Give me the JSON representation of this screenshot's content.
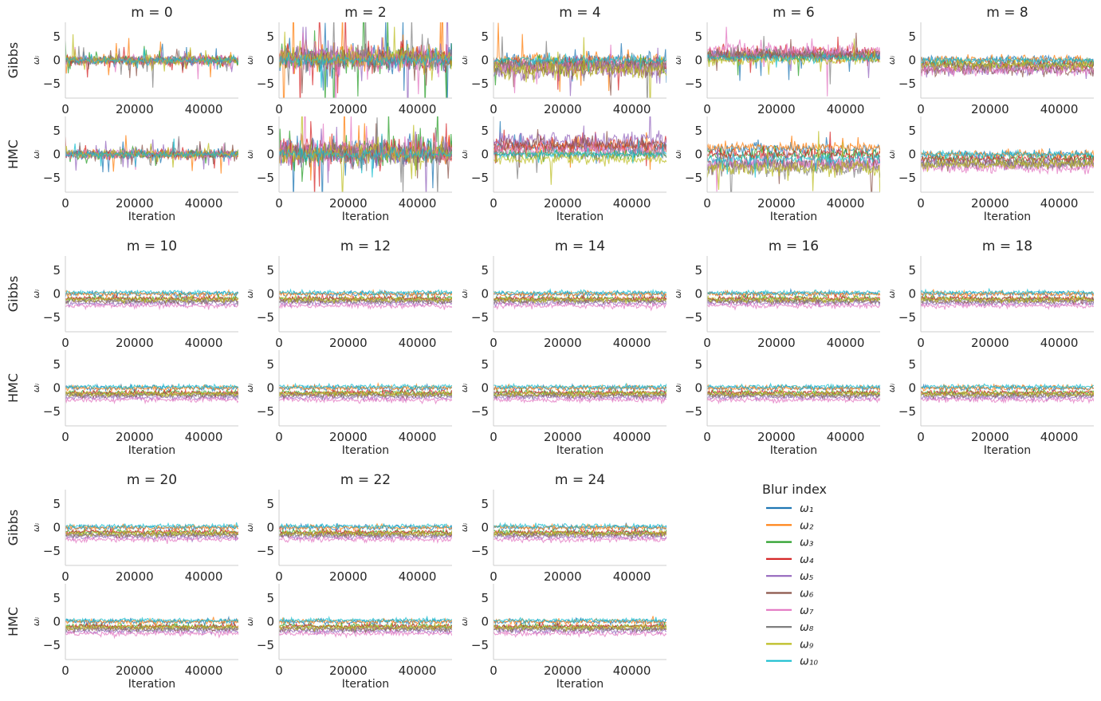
{
  "chart_data": {
    "type": "line",
    "figure_title": "",
    "xlim": [
      0,
      50000
    ],
    "ylim": [
      -8,
      8
    ],
    "xticks": [
      "0",
      "20000",
      "40000"
    ],
    "yticks": [
      "5",
      "0",
      "−5"
    ],
    "ylabel": "ωᵢ",
    "xlabel": "Iteration",
    "samplers": [
      "Gibbs",
      "HMC"
    ],
    "legend": {
      "title": "Blur index",
      "placement": "bottom-right",
      "entries": [
        {
          "label": "ω₁",
          "color": "#1f77b4"
        },
        {
          "label": "ω₂",
          "color": "#ff7f0e"
        },
        {
          "label": "ω₃",
          "color": "#2ca02c"
        },
        {
          "label": "ω₄",
          "color": "#d62728"
        },
        {
          "label": "ω₅",
          "color": "#9467bd"
        },
        {
          "label": "ω₆",
          "color": "#8c564b"
        },
        {
          "label": "ω₇",
          "color": "#e377c2"
        },
        {
          "label": "ω₈",
          "color": "#7f7f7f"
        },
        {
          "label": "ω₉",
          "color": "#bcbd22"
        },
        {
          "label": "ω₁₀",
          "color": "#17becf"
        }
      ]
    },
    "panels": [
      {
        "title": "m = 0",
        "traces": {
          "Gibbs": {
            "means": [
              0,
              0,
              0,
              0,
              0,
              0,
              0,
              0,
              0,
              0
            ],
            "spread": [
              0.8,
              0.8,
              0.8,
              0.8,
              0.8,
              0.8,
              0.8,
              0.8,
              0.8,
              0.6
            ],
            "spikes": 3
          },
          "HMC": {
            "means": [
              0,
              0,
              0,
              0,
              0,
              0,
              0,
              0,
              0,
              0
            ],
            "spread": [
              0.8,
              0.8,
              0.8,
              0.8,
              0.8,
              0.8,
              0.8,
              0.8,
              0.8,
              0.6
            ],
            "spikes": 3
          }
        }
      },
      {
        "title": "m = 2",
        "traces": {
          "Gibbs": {
            "means": [
              0.5,
              0.5,
              0.3,
              0.5,
              0.5,
              0.2,
              0.5,
              0.2,
              0.3,
              0
            ],
            "spread": [
              2.5,
              2.5,
              2.5,
              2.5,
              2.5,
              2,
              2.5,
              2,
              2,
              0.9
            ],
            "spikes": 2
          },
          "HMC": {
            "means": [
              0.5,
              0.5,
              0.3,
              0.5,
              0.5,
              0.2,
              0.5,
              0.2,
              0.3,
              0
            ],
            "spread": [
              2.5,
              2.5,
              2.5,
              2.5,
              2.5,
              2,
              2.5,
              2,
              2,
              0.9
            ],
            "spikes": 2
          }
        }
      },
      {
        "title": "m = 4",
        "traces": {
          "Gibbs": {
            "means": [
              0,
              0,
              -1,
              -1,
              -2,
              -2,
              -1,
              -1,
              -2,
              0
            ],
            "spread": [
              1.5,
              1.5,
              1.5,
              1.5,
              2,
              2,
              1.5,
              1.5,
              2,
              0.8
            ],
            "spikes": 1
          },
          "HMC": {
            "means": [
              1.5,
              1.5,
              0,
              2,
              3,
              2,
              1,
              0,
              -1,
              0
            ],
            "spread": [
              1.2,
              1.2,
              1,
              1.5,
              1.5,
              1.5,
              1,
              1,
              1,
              0.6
            ],
            "spikes": 1
          }
        }
      },
      {
        "title": "m = 6",
        "traces": {
          "Gibbs": {
            "means": [
              1,
              1,
              1,
              1.5,
              1,
              1,
              2,
              1,
              0,
              0.5
            ],
            "spread": [
              1.2,
              1.2,
              1.2,
              1.5,
              1.2,
              1.2,
              1.5,
              1.2,
              1,
              0.7
            ],
            "spikes": 1
          },
          "HMC": {
            "means": [
              1,
              1.5,
              0,
              0,
              -2,
              -2,
              -2,
              -3,
              -3,
              -1
            ],
            "spread": [
              1,
              1,
              1,
              1,
              1.5,
              1.5,
              1.5,
              1.5,
              1.5,
              0.9
            ],
            "spikes": 1
          }
        }
      },
      {
        "title": "m = 8",
        "traces": {
          "Gibbs": {
            "means": [
              0,
              0,
              -1,
              -1,
              -2,
              -2,
              -2,
              -1,
              -1,
              0
            ],
            "spread": [
              0.9,
              0.9,
              0.9,
              0.9,
              1.2,
              1.2,
              1.2,
              1,
              1,
              0.6
            ],
            "spikes": 0
          },
          "HMC": {
            "means": [
              0,
              0,
              -1,
              -1,
              -2,
              -2,
              -3,
              -2,
              -2,
              0
            ],
            "spread": [
              0.8,
              0.8,
              0.8,
              0.8,
              1,
              1,
              1,
              1,
              1,
              0.6
            ],
            "spikes": 0
          }
        }
      },
      {
        "title": "m = 10",
        "traces": {
          "Gibbs": {
            "means": [
              0,
              0,
              -1,
              -1,
              -2,
              -1.5,
              -2.5,
              -1.5,
              -1.2,
              0.3
            ],
            "spread": [
              0.5,
              0.5,
              0.5,
              0.5,
              0.5,
              0.5,
              0.5,
              0.5,
              0.5,
              0.4
            ],
            "spikes": 0
          },
          "HMC": {
            "means": [
              0,
              0,
              -1,
              -1,
              -2,
              -1.5,
              -2.5,
              -1.5,
              -1.2,
              0.3
            ],
            "spread": [
              0.5,
              0.5,
              0.5,
              0.5,
              0.5,
              0.5,
              0.5,
              0.5,
              0.5,
              0.4
            ],
            "spikes": 0
          }
        }
      },
      {
        "title": "m = 12",
        "traces": {
          "Gibbs": {
            "means": [
              0,
              0,
              -1,
              -1,
              -2,
              -1.5,
              -2.5,
              -1.5,
              -1.2,
              0.3
            ],
            "spread": [
              0.5,
              0.5,
              0.5,
              0.5,
              0.5,
              0.5,
              0.5,
              0.5,
              0.5,
              0.4
            ],
            "spikes": 0
          },
          "HMC": {
            "means": [
              0,
              0,
              -1,
              -1,
              -2,
              -1.5,
              -2.5,
              -1.5,
              -1.2,
              0.3
            ],
            "spread": [
              0.5,
              0.5,
              0.5,
              0.5,
              0.5,
              0.5,
              0.5,
              0.5,
              0.5,
              0.4
            ],
            "spikes": 0
          }
        }
      },
      {
        "title": "m = 14",
        "traces": {
          "Gibbs": {
            "means": [
              0,
              0,
              -1,
              -1,
              -2,
              -1.5,
              -2.5,
              -1.5,
              -1.2,
              0.3
            ],
            "spread": [
              0.5,
              0.5,
              0.5,
              0.5,
              0.5,
              0.5,
              0.5,
              0.5,
              0.5,
              0.4
            ],
            "spikes": 0
          },
          "HMC": {
            "means": [
              0,
              0,
              -1,
              -1,
              -2,
              -1.5,
              -2.5,
              -1.5,
              -1.2,
              0.3
            ],
            "spread": [
              0.5,
              0.5,
              0.5,
              0.5,
              0.5,
              0.5,
              0.5,
              0.5,
              0.5,
              0.4
            ],
            "spikes": 0
          }
        }
      },
      {
        "title": "m = 16",
        "traces": {
          "Gibbs": {
            "means": [
              0,
              0,
              -1,
              -1,
              -2,
              -1.5,
              -2.5,
              -1.5,
              -1.2,
              0.3
            ],
            "spread": [
              0.5,
              0.5,
              0.5,
              0.5,
              0.5,
              0.5,
              0.5,
              0.5,
              0.5,
              0.4
            ],
            "spikes": 0
          },
          "HMC": {
            "means": [
              0,
              0,
              -1,
              -1,
              -2,
              -1.5,
              -2.5,
              -1.5,
              -1.2,
              0.3
            ],
            "spread": [
              0.5,
              0.5,
              0.5,
              0.5,
              0.5,
              0.5,
              0.5,
              0.5,
              0.5,
              0.4
            ],
            "spikes": 0
          }
        }
      },
      {
        "title": "m = 18",
        "traces": {
          "Gibbs": {
            "means": [
              0,
              0,
              -1,
              -1,
              -2,
              -1.5,
              -2.5,
              -1.5,
              -1.2,
              0.3
            ],
            "spread": [
              0.5,
              0.5,
              0.5,
              0.5,
              0.5,
              0.5,
              0.5,
              0.5,
              0.5,
              0.4
            ],
            "spikes": 0
          },
          "HMC": {
            "means": [
              0,
              0,
              -1,
              -1,
              -2,
              -1.5,
              -2.5,
              -1.5,
              -1.2,
              0.3
            ],
            "spread": [
              0.5,
              0.5,
              0.5,
              0.5,
              0.5,
              0.5,
              0.5,
              0.5,
              0.5,
              0.4
            ],
            "spikes": 0
          }
        }
      },
      {
        "title": "m = 20",
        "traces": {
          "Gibbs": {
            "means": [
              0,
              0,
              -1,
              -1,
              -2,
              -1.5,
              -2.5,
              -1.5,
              -1.2,
              0.3
            ],
            "spread": [
              0.5,
              0.5,
              0.5,
              0.5,
              0.5,
              0.5,
              0.5,
              0.5,
              0.5,
              0.4
            ],
            "spikes": 0
          },
          "HMC": {
            "means": [
              0,
              0,
              -1,
              -1,
              -2,
              -1.5,
              -2.5,
              -1.5,
              -1.2,
              0.3
            ],
            "spread": [
              0.5,
              0.5,
              0.5,
              0.5,
              0.5,
              0.5,
              0.5,
              0.5,
              0.5,
              0.4
            ],
            "spikes": 0
          }
        }
      },
      {
        "title": "m = 22",
        "traces": {
          "Gibbs": {
            "means": [
              0,
              0,
              -1,
              -1,
              -2,
              -1.5,
              -2.5,
              -1.5,
              -1.2,
              0.3
            ],
            "spread": [
              0.5,
              0.5,
              0.5,
              0.5,
              0.5,
              0.5,
              0.5,
              0.5,
              0.5,
              0.4
            ],
            "spikes": 0
          },
          "HMC": {
            "means": [
              0,
              0,
              -1,
              -1,
              -2,
              -1.5,
              -2.5,
              -1.5,
              -1.2,
              0.3
            ],
            "spread": [
              0.5,
              0.5,
              0.5,
              0.5,
              0.5,
              0.5,
              0.5,
              0.5,
              0.5,
              0.4
            ],
            "spikes": 0
          }
        }
      },
      {
        "title": "m = 24",
        "traces": {
          "Gibbs": {
            "means": [
              0,
              0,
              -1,
              -1,
              -2,
              -1.5,
              -2.5,
              -1.5,
              -1.2,
              0.3
            ],
            "spread": [
              0.5,
              0.5,
              0.5,
              0.5,
              0.5,
              0.5,
              0.5,
              0.5,
              0.5,
              0.4
            ],
            "spikes": 0
          },
          "HMC": {
            "means": [
              0,
              0,
              -1,
              -1,
              -2,
              -1.5,
              -2.5,
              -1.5,
              -1.2,
              0.3
            ],
            "spread": [
              0.5,
              0.5,
              0.5,
              0.5,
              0.5,
              0.5,
              0.5,
              0.5,
              0.5,
              0.4
            ],
            "spikes": 0
          }
        }
      }
    ]
  }
}
